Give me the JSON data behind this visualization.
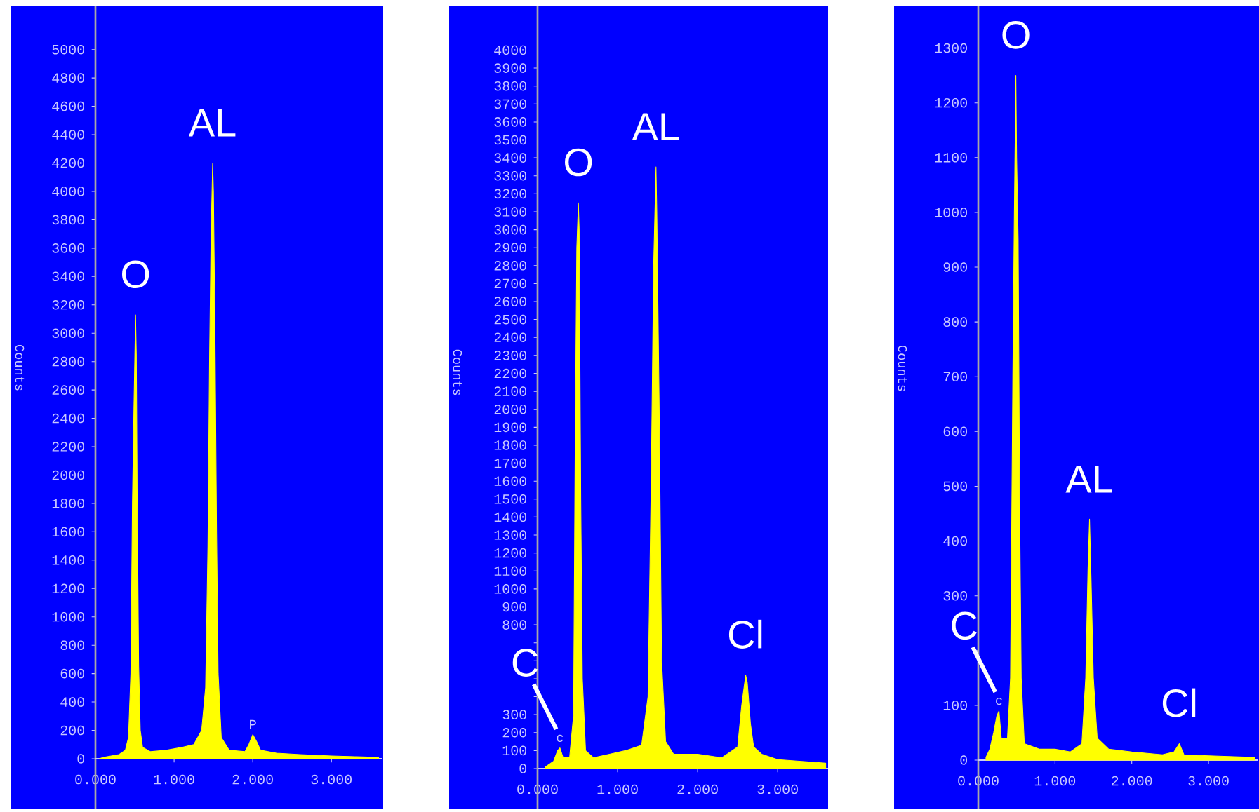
{
  "chart_data": [
    {
      "type": "area",
      "ylabel": "Counts",
      "xlim": [
        0,
        3.64
      ],
      "ylim": [
        0,
        5300
      ],
      "xticks": [
        {
          "value": 0,
          "label": "0.000"
        },
        {
          "value": 1,
          "label": "1.000"
        },
        {
          "value": 2,
          "label": "2.000"
        },
        {
          "value": 3,
          "label": "3.000"
        }
      ],
      "yticks": [
        0,
        200,
        400,
        600,
        800,
        1000,
        1200,
        1400,
        1600,
        1800,
        2000,
        2200,
        2400,
        2600,
        2800,
        3000,
        3200,
        3400,
        3600,
        3800,
        4000,
        4200,
        4400,
        4600,
        4800,
        5000
      ],
      "annotations": [
        {
          "text": "O",
          "x": 0.51,
          "y": 3130
        },
        {
          "text": "AL",
          "x": 1.49,
          "y": 4200
        }
      ],
      "series": [
        {
          "color": "#ffff00",
          "x": [
            0.05,
            0.1,
            0.2,
            0.3,
            0.38,
            0.42,
            0.45,
            0.47,
            0.49,
            0.51,
            0.52,
            0.53,
            0.55,
            0.57,
            0.6,
            0.7,
            0.9,
            1.1,
            1.25,
            1.35,
            1.4,
            1.43,
            1.45,
            1.47,
            1.49,
            1.5,
            1.52,
            1.54,
            1.56,
            1.6,
            1.7,
            1.9,
            1.95,
            2.0,
            2.05,
            2.1,
            2.3,
            2.6,
            3.0,
            3.3,
            3.6
          ],
          "values": [
            0,
            10,
            20,
            30,
            60,
            150,
            600,
            1800,
            2500,
            3130,
            2850,
            1900,
            650,
            200,
            80,
            50,
            60,
            80,
            100,
            200,
            500,
            1500,
            2800,
            3700,
            4200,
            4000,
            3000,
            1600,
            600,
            150,
            60,
            50,
            100,
            170,
            120,
            60,
            40,
            30,
            20,
            15,
            10
          ],
          "value_labels": [
            null,
            null,
            null,
            null,
            null,
            null,
            null,
            null,
            null,
            null,
            null,
            null,
            null,
            null,
            null,
            null,
            null,
            null,
            null,
            null,
            null,
            null,
            null,
            null,
            null,
            null,
            null,
            null,
            null,
            null,
            null,
            null,
            null,
            "P",
            null,
            null,
            null,
            null,
            null,
            null,
            null
          ]
        }
      ]
    },
    {
      "type": "area",
      "ylabel": "Counts",
      "xlim": [
        0,
        3.63
      ],
      "ylim": [
        0,
        4240
      ],
      "xticks": [
        {
          "value": 0,
          "label": "0.000"
        },
        {
          "value": 1,
          "label": "1.000"
        },
        {
          "value": 2,
          "label": "2.000"
        },
        {
          "value": 3,
          "label": "3.000"
        }
      ],
      "yticks": [
        0,
        100,
        200,
        300,
        {
          "value": 400,
          "label": null
        },
        {
          "value": 500,
          "label": null
        },
        {
          "value": 600,
          "label": null
        },
        {
          "value": 700,
          "label": null
        },
        800,
        900,
        1000,
        1100,
        1200,
        1300,
        1400,
        1500,
        1600,
        1700,
        1800,
        1900,
        2000,
        2100,
        2200,
        2300,
        2400,
        2500,
        2600,
        2700,
        2800,
        2900,
        3000,
        3100,
        3200,
        3300,
        3400,
        3500,
        3600,
        3700,
        3800,
        3900,
        4000
      ],
      "annotations": [
        {
          "text": "C",
          "x": 0.28,
          "y": 115
        },
        {
          "text": "O",
          "x": 0.51,
          "y": 3150
        },
        {
          "text": "AL",
          "x": 1.48,
          "y": 3350
        },
        {
          "text": "Cl",
          "x": 2.6,
          "y": 520
        }
      ],
      "series": [
        {
          "color": "#ffff00",
          "x": [
            0.1,
            0.2,
            0.25,
            0.28,
            0.32,
            0.4,
            0.45,
            0.47,
            0.49,
            0.51,
            0.52,
            0.54,
            0.56,
            0.6,
            0.7,
            0.9,
            1.1,
            1.3,
            1.38,
            1.42,
            1.45,
            1.48,
            1.49,
            1.52,
            1.55,
            1.6,
            1.7,
            2.0,
            2.3,
            2.5,
            2.55,
            2.6,
            2.62,
            2.66,
            2.7,
            2.8,
            3.0,
            3.3,
            3.6
          ],
          "values": [
            10,
            40,
            100,
            115,
            60,
            60,
            300,
            1800,
            2900,
            3150,
            3000,
            1500,
            500,
            100,
            60,
            80,
            100,
            130,
            400,
            1600,
            2800,
            3350,
            3100,
            2000,
            600,
            150,
            80,
            80,
            60,
            120,
            350,
            520,
            480,
            250,
            120,
            80,
            50,
            40,
            30
          ],
          "value_labels": [
            null,
            null,
            null,
            "c",
            null,
            null,
            null,
            null,
            null,
            null,
            null,
            null,
            null,
            null,
            null,
            null,
            null,
            null,
            null,
            null,
            null,
            null,
            null,
            null,
            null,
            null,
            null,
            null,
            null,
            null,
            null,
            null,
            null,
            null,
            null,
            null,
            null,
            null,
            null
          ]
        }
      ]
    },
    {
      "type": "area",
      "ylabel": "Counts",
      "xlim": [
        0,
        3.64
      ],
      "ylim": [
        0,
        1375
      ],
      "xticks": [
        {
          "value": 0,
          "label": "0.000"
        },
        {
          "value": 1,
          "label": "1.000"
        },
        {
          "value": 2,
          "label": "2.000"
        },
        {
          "value": 3,
          "label": "3.000"
        }
      ],
      "yticks": [
        0,
        100,
        {
          "value": 200,
          "label": null
        },
        300,
        400,
        500,
        600,
        700,
        800,
        900,
        1000,
        1100,
        1200,
        1300
      ],
      "annotations": [
        {
          "text": "C",
          "x": 0.27,
          "y": 90
        },
        {
          "text": "O",
          "x": 0.49,
          "y": 1250
        },
        {
          "text": "AL",
          "x": 1.45,
          "y": 440
        },
        {
          "text": "Cl",
          "x": 2.62,
          "y": 30
        }
      ],
      "series": [
        {
          "color": "#ffff00",
          "x": [
            0.1,
            0.15,
            0.2,
            0.24,
            0.27,
            0.3,
            0.38,
            0.42,
            0.45,
            0.47,
            0.49,
            0.5,
            0.52,
            0.54,
            0.56,
            0.6,
            0.8,
            1.0,
            1.2,
            1.35,
            1.4,
            1.43,
            1.45,
            1.47,
            1.5,
            1.55,
            1.7,
            2.0,
            2.4,
            2.55,
            2.62,
            2.68,
            3.0,
            3.6
          ],
          "values": [
            5,
            20,
            50,
            80,
            90,
            40,
            40,
            150,
            700,
            1000,
            1250,
            1100,
            950,
            450,
            150,
            30,
            20,
            20,
            15,
            30,
            150,
            350,
            440,
            330,
            150,
            40,
            20,
            15,
            10,
            15,
            30,
            10,
            8,
            5
          ],
          "value_labels": [
            null,
            null,
            null,
            null,
            "c",
            null,
            null,
            null,
            null,
            null,
            null,
            null,
            null,
            null,
            null,
            null,
            null,
            null,
            null,
            null,
            null,
            null,
            null,
            null,
            null,
            null,
            null,
            null,
            null,
            null,
            null,
            null,
            null,
            null
          ]
        }
      ]
    }
  ]
}
